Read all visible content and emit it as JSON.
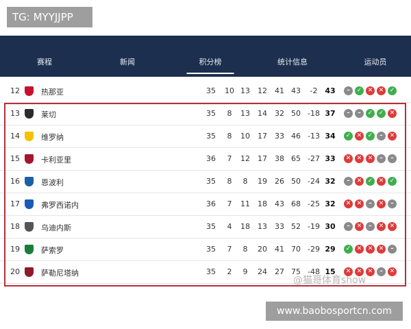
{
  "watermark_top": "TG: MYYJJPP",
  "tabs": [
    "赛程",
    "新闻",
    "积分榜",
    "统计信息",
    "运动员"
  ],
  "table": {
    "rows": [
      [
        12,
        "热那亚",
        35,
        10,
        13,
        12,
        41,
        43,
        -2,
        43
      ],
      [
        13,
        "莱切",
        35,
        8,
        13,
        14,
        32,
        50,
        -18,
        37
      ],
      [
        14,
        "维罗纳",
        35,
        8,
        10,
        17,
        33,
        46,
        -13,
        34
      ],
      [
        15,
        "卡利亚里",
        36,
        7,
        12,
        17,
        38,
        65,
        -27,
        33
      ],
      [
        16,
        "恩波利",
        35,
        8,
        8,
        19,
        26,
        50,
        -24,
        32
      ],
      [
        17,
        "弗罗西诺内",
        36,
        7,
        11,
        18,
        43,
        68,
        -25,
        32
      ],
      [
        18,
        "乌迪内斯",
        35,
        4,
        18,
        13,
        33,
        52,
        -19,
        30
      ],
      [
        19,
        "萨索罗",
        35,
        7,
        8,
        20,
        41,
        70,
        -29,
        29
      ],
      [
        20,
        "萨勒尼塔纳",
        35,
        2,
        9,
        24,
        27,
        75,
        -48,
        15
      ]
    ]
  },
  "watermark_bottom": "@猫哥体育show",
  "site": "www.baobosportcn.com"
}
